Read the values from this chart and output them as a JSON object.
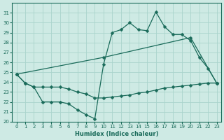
{
  "xlabel": "Humidex (Indice chaleur)",
  "xlim": [
    -0.5,
    23.5
  ],
  "ylim": [
    20,
    32
  ],
  "yticks": [
    20,
    21,
    22,
    23,
    24,
    25,
    26,
    27,
    28,
    29,
    30,
    31
  ],
  "xticks": [
    0,
    1,
    2,
    3,
    4,
    5,
    6,
    7,
    8,
    9,
    10,
    11,
    12,
    13,
    14,
    15,
    16,
    17,
    18,
    19,
    20,
    21,
    22,
    23
  ],
  "bg_color": "#ceeae4",
  "line_color": "#1a6b5a",
  "grid_color": "#aad4cc",
  "line1_x": [
    0,
    1,
    2,
    3,
    4,
    5,
    6,
    7,
    8,
    9,
    10,
    11,
    12,
    13,
    14,
    15,
    16,
    17,
    18,
    19,
    20,
    21,
    22,
    23
  ],
  "line1_y": [
    24.8,
    23.9,
    23.5,
    23.5,
    23.5,
    23.5,
    23.3,
    23.0,
    22.8,
    22.4,
    22.4,
    22.5,
    22.6,
    22.7,
    22.9,
    23.0,
    23.2,
    23.4,
    23.5,
    23.6,
    23.7,
    23.8,
    23.9,
    23.9
  ],
  "line2_x": [
    0,
    1,
    2,
    3,
    4,
    5,
    6,
    7,
    8,
    9,
    10,
    11,
    12,
    13,
    14,
    15,
    16,
    17,
    18,
    19,
    20,
    21,
    22,
    23
  ],
  "line2_y": [
    24.8,
    23.9,
    23.5,
    22.0,
    22.0,
    22.0,
    21.8,
    21.2,
    20.7,
    20.3,
    25.8,
    29.0,
    29.3,
    30.0,
    29.3,
    29.2,
    31.1,
    29.6,
    28.8,
    28.8,
    28.2,
    26.5,
    25.4,
    23.9
  ],
  "line3_x": [
    0,
    10,
    20,
    23
  ],
  "line3_y": [
    24.8,
    26.5,
    28.5,
    23.9
  ]
}
